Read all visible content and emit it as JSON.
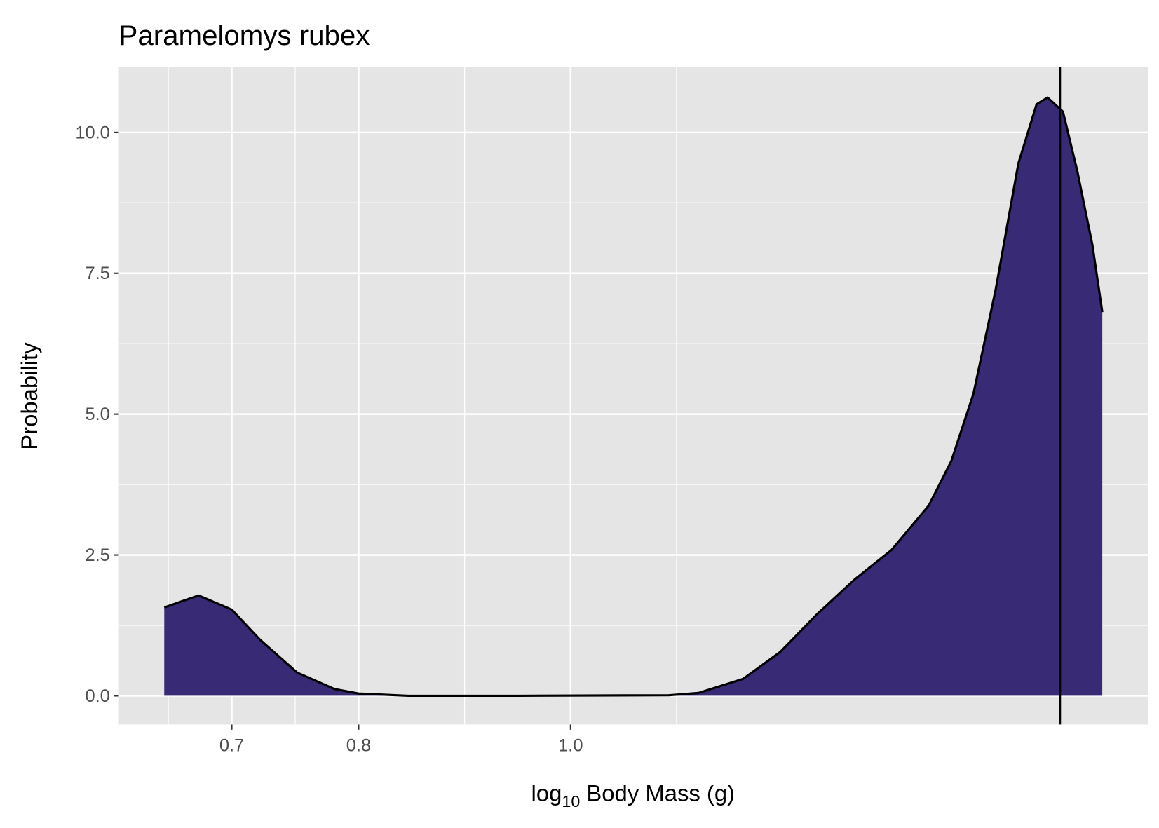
{
  "chart_data": {
    "type": "density",
    "title": "Paramelomys rubex",
    "x_label_parts": [
      "log",
      "10",
      " Body Mass (g)"
    ],
    "y_label": "Probability",
    "x_log": true,
    "x": [
      0.652,
      0.676,
      0.7,
      0.721,
      0.75,
      0.78,
      0.8,
      0.843,
      0.948,
      1.109,
      1.144,
      1.199,
      1.247,
      1.297,
      1.348,
      1.402,
      1.458,
      1.493,
      1.528,
      1.564,
      1.602,
      1.633,
      1.652,
      1.679,
      1.705,
      1.732,
      1.75
    ],
    "y": [
      1.57,
      1.78,
      1.53,
      1.0,
      0.41,
      0.12,
      0.04,
      0,
      0,
      0.01,
      0.05,
      0.3,
      0.78,
      1.46,
      2.06,
      2.59,
      3.38,
      4.17,
      5.36,
      7.2,
      9.45,
      10.5,
      10.62,
      10.37,
      9.3,
      8.0,
      6.81
    ],
    "color": "#382a75",
    "vline": 1.674,
    "xlim": [
      0.6216,
      1.836
    ],
    "ylim": [
      -0.51,
      11.16
    ],
    "xticks": [
      0.7,
      0.8,
      {
        "value": 1.0,
        "label": "1.0"
      }
    ],
    "yticks": [
      {
        "value": 0,
        "label": "0.0"
      },
      2.5,
      {
        "value": 5,
        "label": "5.0"
      },
      7.5,
      {
        "value": 10,
        "label": "10.0"
      }
    ],
    "grid": true
  }
}
